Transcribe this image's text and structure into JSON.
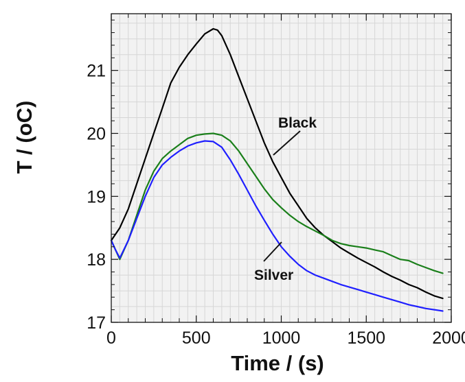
{
  "chart_data": {
    "type": "line",
    "title": "",
    "xlabel": "Time / (s)",
    "ylabel": "T / (oC)",
    "xlim": [
      0,
      2000
    ],
    "ylim": [
      17,
      21.9
    ],
    "x_ticks": [
      0,
      500,
      1000,
      1500,
      2000
    ],
    "x_tick_labels": [
      "0",
      "500",
      "1000",
      "1500",
      "2000"
    ],
    "y_ticks": [
      17,
      18,
      19,
      20,
      21
    ],
    "y_tick_labels": [
      "17",
      "18",
      "19",
      "20",
      "21"
    ],
    "grid": true,
    "legend": "none",
    "annotations": [
      {
        "text": "Black",
        "series": "Black"
      },
      {
        "text": "Silver",
        "series": "Silver"
      }
    ],
    "series": [
      {
        "name": "Black",
        "color": "#000000",
        "x": [
          0,
          50,
          100,
          150,
          200,
          250,
          300,
          350,
          400,
          450,
          500,
          550,
          600,
          625,
          650,
          700,
          750,
          800,
          850,
          900,
          950,
          1000,
          1050,
          1100,
          1150,
          1200,
          1250,
          1300,
          1350,
          1400,
          1450,
          1500,
          1550,
          1600,
          1650,
          1700,
          1750,
          1800,
          1850,
          1900,
          1950
        ],
        "y": [
          18.3,
          18.5,
          18.8,
          19.2,
          19.6,
          20.0,
          20.4,
          20.8,
          21.05,
          21.25,
          21.42,
          21.58,
          21.66,
          21.64,
          21.55,
          21.25,
          20.9,
          20.55,
          20.2,
          19.85,
          19.55,
          19.3,
          19.05,
          18.85,
          18.65,
          18.5,
          18.38,
          18.28,
          18.18,
          18.1,
          18.02,
          17.95,
          17.88,
          17.8,
          17.73,
          17.67,
          17.6,
          17.55,
          17.48,
          17.42,
          17.38
        ]
      },
      {
        "name": "",
        "color": "#1a7f1a",
        "x": [
          0,
          25,
          50,
          100,
          150,
          200,
          250,
          300,
          350,
          400,
          450,
          500,
          550,
          600,
          650,
          700,
          750,
          800,
          850,
          900,
          950,
          1000,
          1050,
          1100,
          1150,
          1200,
          1250,
          1300,
          1350,
          1400,
          1450,
          1500,
          1550,
          1600,
          1650,
          1700,
          1750,
          1800,
          1850,
          1900,
          1950
        ],
        "y": [
          18.3,
          18.15,
          18.0,
          18.3,
          18.7,
          19.1,
          19.4,
          19.6,
          19.72,
          19.82,
          19.92,
          19.97,
          19.99,
          20.0,
          19.97,
          19.88,
          19.72,
          19.52,
          19.32,
          19.12,
          18.95,
          18.82,
          18.7,
          18.6,
          18.52,
          18.45,
          18.38,
          18.3,
          18.25,
          18.22,
          18.2,
          18.18,
          18.15,
          18.12,
          18.06,
          18.0,
          17.98,
          17.92,
          17.87,
          17.82,
          17.78
        ]
      },
      {
        "name": "Silver",
        "color": "#1f1fff",
        "x": [
          0,
          25,
          50,
          100,
          150,
          200,
          250,
          300,
          350,
          400,
          450,
          500,
          550,
          600,
          650,
          700,
          750,
          800,
          850,
          900,
          950,
          1000,
          1050,
          1100,
          1150,
          1200,
          1250,
          1300,
          1350,
          1400,
          1450,
          1500,
          1550,
          1600,
          1650,
          1700,
          1750,
          1800,
          1850,
          1900,
          1950
        ],
        "y": [
          18.3,
          18.15,
          18.02,
          18.3,
          18.65,
          19.0,
          19.3,
          19.5,
          19.62,
          19.72,
          19.8,
          19.85,
          19.88,
          19.87,
          19.78,
          19.58,
          19.35,
          19.1,
          18.85,
          18.62,
          18.4,
          18.2,
          18.05,
          17.92,
          17.82,
          17.75,
          17.7,
          17.65,
          17.6,
          17.56,
          17.52,
          17.48,
          17.44,
          17.4,
          17.36,
          17.32,
          17.28,
          17.25,
          17.22,
          17.2,
          17.18
        ]
      }
    ]
  }
}
